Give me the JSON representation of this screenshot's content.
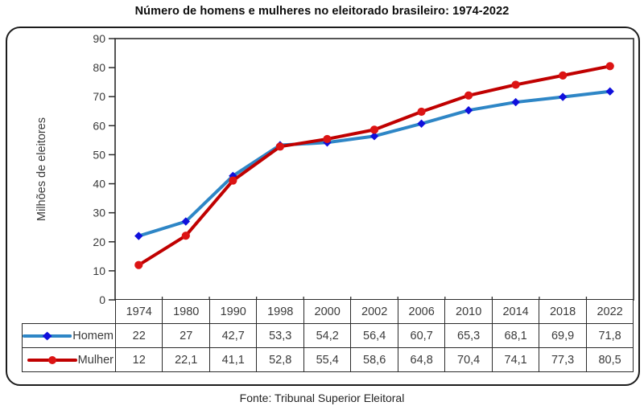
{
  "page": {
    "title": "Número de homens e mulheres no eleitorado brasileiro: 1974-2022",
    "source_note": "Fonte: Tribunal Superior Eleitoral"
  },
  "chart_data": {
    "type": "line",
    "title": "Número de homens e mulheres no eleitorado brasileiro: 1974-2022",
    "xlabel": "",
    "ylabel": "Milhões de eleitores",
    "ylim": [
      0,
      90
    ],
    "ytick_step": 10,
    "ytick_labels": [
      "0",
      "10",
      "20",
      "30",
      "40",
      "50",
      "60",
      "70",
      "80",
      "90"
    ],
    "grid": false,
    "legend_position": "data-table-left",
    "categories": [
      "1974",
      "1980",
      "1990",
      "1998",
      "2000",
      "2002",
      "2006",
      "2010",
      "2014",
      "2018",
      "2022"
    ],
    "series": [
      {
        "name": "Homem",
        "marker": "diamond",
        "line_color": "#2E86C6",
        "marker_color": "#1010DC",
        "values": [
          22,
          27,
          42.7,
          53.3,
          54.2,
          56.4,
          60.7,
          65.3,
          68.1,
          69.9,
          71.8
        ],
        "display_values": [
          "22",
          "27",
          "42,7",
          "53,3",
          "54,2",
          "56,4",
          "60,7",
          "65,3",
          "68,1",
          "69,9",
          "71,8"
        ]
      },
      {
        "name": "Mulher",
        "marker": "circle",
        "line_color": "#C00000",
        "marker_color": "#DC1414",
        "values": [
          12,
          22.1,
          41.1,
          52.8,
          55.4,
          58.6,
          64.8,
          70.4,
          74.1,
          77.3,
          80.5
        ],
        "display_values": [
          "12",
          "22,1",
          "41,1",
          "52,8",
          "55,4",
          "58,6",
          "64,8",
          "70,4",
          "74,1",
          "77,3",
          "80,5"
        ]
      }
    ],
    "axis_color": "#2b2b2b",
    "text_color": "#3a3a3a"
  }
}
